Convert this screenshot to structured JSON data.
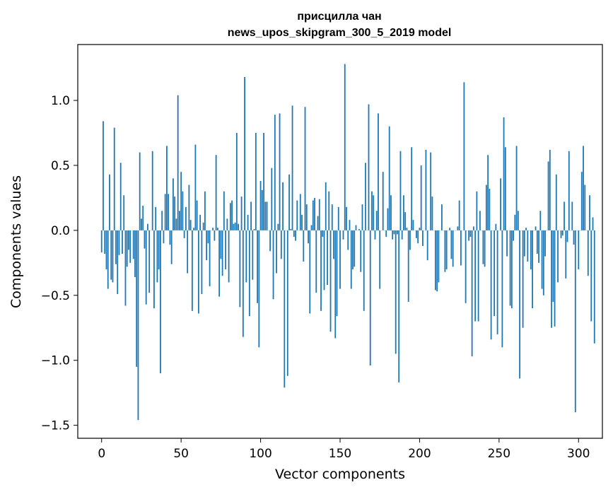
{
  "chart_data": {
    "type": "bar",
    "title": "присцилла чан",
    "subtitle": "news_upos_skipgram_300_5_2019 model",
    "xlabel": "Vector components",
    "ylabel": "Components values",
    "xlim": [
      -15,
      315
    ],
    "ylim": [
      -1.6,
      1.43
    ],
    "x_ticks": [
      0,
      50,
      100,
      150,
      200,
      250,
      300
    ],
    "y_ticks": [
      -1.5,
      -1.0,
      -0.5,
      0.0,
      0.5,
      1.0
    ],
    "y_tick_labels": [
      "−1.5",
      "−1.0",
      "−0.5",
      "0.0",
      "0.5",
      "1.0"
    ],
    "color": "#1f77b4",
    "grid": false,
    "values": [
      -0.17,
      0.84,
      -0.18,
      -0.3,
      -0.45,
      0.43,
      -0.38,
      -0.4,
      0.79,
      -0.26,
      -0.49,
      -0.19,
      0.52,
      -0.18,
      0.27,
      -0.58,
      -0.28,
      -0.15,
      -0.25,
      0.0,
      -0.22,
      -0.36,
      -1.05,
      -1.46,
      0.6,
      0.09,
      0.19,
      -0.14,
      -0.57,
      0.05,
      -0.48,
      0.0,
      0.61,
      -0.6,
      0.18,
      -0.4,
      -0.3,
      -1.1,
      0.15,
      -0.1,
      0.28,
      0.65,
      0.28,
      -0.11,
      -0.26,
      0.4,
      0.26,
      0.09,
      1.04,
      0.15,
      0.45,
      0.3,
      -0.06,
      0.18,
      -0.33,
      0.35,
      0.08,
      -0.62,
      0.02,
      0.66,
      0.23,
      -0.64,
      0.12,
      -0.49,
      0.06,
      0.3,
      -0.23,
      -0.1,
      -0.43,
      0.0,
      0.02,
      -0.08,
      0.58,
      0.02,
      -0.51,
      -0.22,
      -0.35,
      0.3,
      -0.3,
      0.09,
      -0.4,
      0.21,
      0.23,
      0.05,
      0.06,
      0.75,
      0.05,
      -0.59,
      0.26,
      -0.82,
      1.18,
      -0.4,
      0.12,
      -0.66,
      0.22,
      -0.38,
      0.01,
      0.75,
      -0.56,
      -0.9,
      0.38,
      0.31,
      0.75,
      0.22,
      0.22,
      0.0,
      -0.16,
      0.48,
      -0.53,
      0.89,
      -0.33,
      0.05,
      0.9,
      -0.22,
      0.37,
      -1.21,
      0.0,
      -1.12,
      0.43,
      0.01,
      0.96,
      -0.05,
      -0.08,
      0.23,
      0.0,
      0.28,
      0.12,
      -0.24,
      0.95,
      0.2,
      -0.1,
      -0.64,
      0.04,
      0.23,
      0.25,
      -0.48,
      0.11,
      0.24,
      -0.62,
      -0.05,
      -0.46,
      0.37,
      -0.42,
      0.3,
      -0.78,
      0.2,
      -0.22,
      -0.83,
      -0.66,
      0.18,
      -0.45,
      0.0,
      -0.07,
      1.28,
      0.18,
      -0.15,
      0.08,
      -0.45,
      -0.3,
      -0.28,
      0.04,
      0.0,
      0.01,
      -0.32,
      0.2,
      -0.62,
      0.52,
      0.0,
      0.97,
      -1.04,
      0.3,
      0.27,
      -0.07,
      0.15,
      0.9,
      -0.45,
      0.0,
      0.45,
      0.0,
      -0.05,
      0.17,
      0.8,
      0.27,
      -0.07,
      -0.03,
      -0.95,
      -0.03,
      -1.17,
      0.61,
      -0.07,
      0.27,
      0.14,
      0.02,
      -0.55,
      -0.15,
      0.64,
      0.08,
      0.0,
      -0.06,
      -0.1,
      0.02,
      0.5,
      -0.12,
      0.0,
      0.62,
      -0.23,
      0.0,
      0.6,
      0.26,
      0.0,
      -0.46,
      -0.47,
      -0.4,
      0.0,
      0.2,
      0.0,
      -0.32,
      -0.3,
      0.0,
      0.02,
      -0.22,
      -0.28,
      0.0,
      0.0,
      0.03,
      0.23,
      -0.27,
      0.0,
      1.14,
      -0.56,
      0.0,
      -0.08,
      -0.05,
      -0.97,
      0.03,
      -0.7,
      0.3,
      -0.7,
      0.15,
      0.0,
      -0.26,
      -0.28,
      0.35,
      0.58,
      0.32,
      -0.84,
      0.0,
      -0.66,
      0.05,
      -0.8,
      0.0,
      0.4,
      -0.9,
      0.87,
      0.64,
      -0.2,
      0.0,
      -0.58,
      -0.6,
      -0.08,
      0.12,
      0.65,
      0.15,
      -1.14,
      0.0,
      -0.75,
      -0.2,
      0.02,
      -0.24,
      0.0,
      -0.3,
      -0.6,
      0.0,
      0.03,
      -0.18,
      -0.25,
      0.15,
      -0.45,
      -0.5,
      -0.2,
      0.0,
      0.53,
      0.62,
      -0.75,
      -0.55,
      -0.74,
      0.43,
      -0.4,
      0.0,
      -0.06,
      -0.04,
      0.22,
      -0.37,
      -0.09,
      0.61,
      0.0,
      0.22,
      -0.11,
      -1.4,
      0.0,
      -0.3,
      0.0,
      0.45,
      0.65,
      0.35,
      0.0,
      -0.35,
      0.27,
      -0.7,
      0.1,
      -0.87
    ]
  }
}
